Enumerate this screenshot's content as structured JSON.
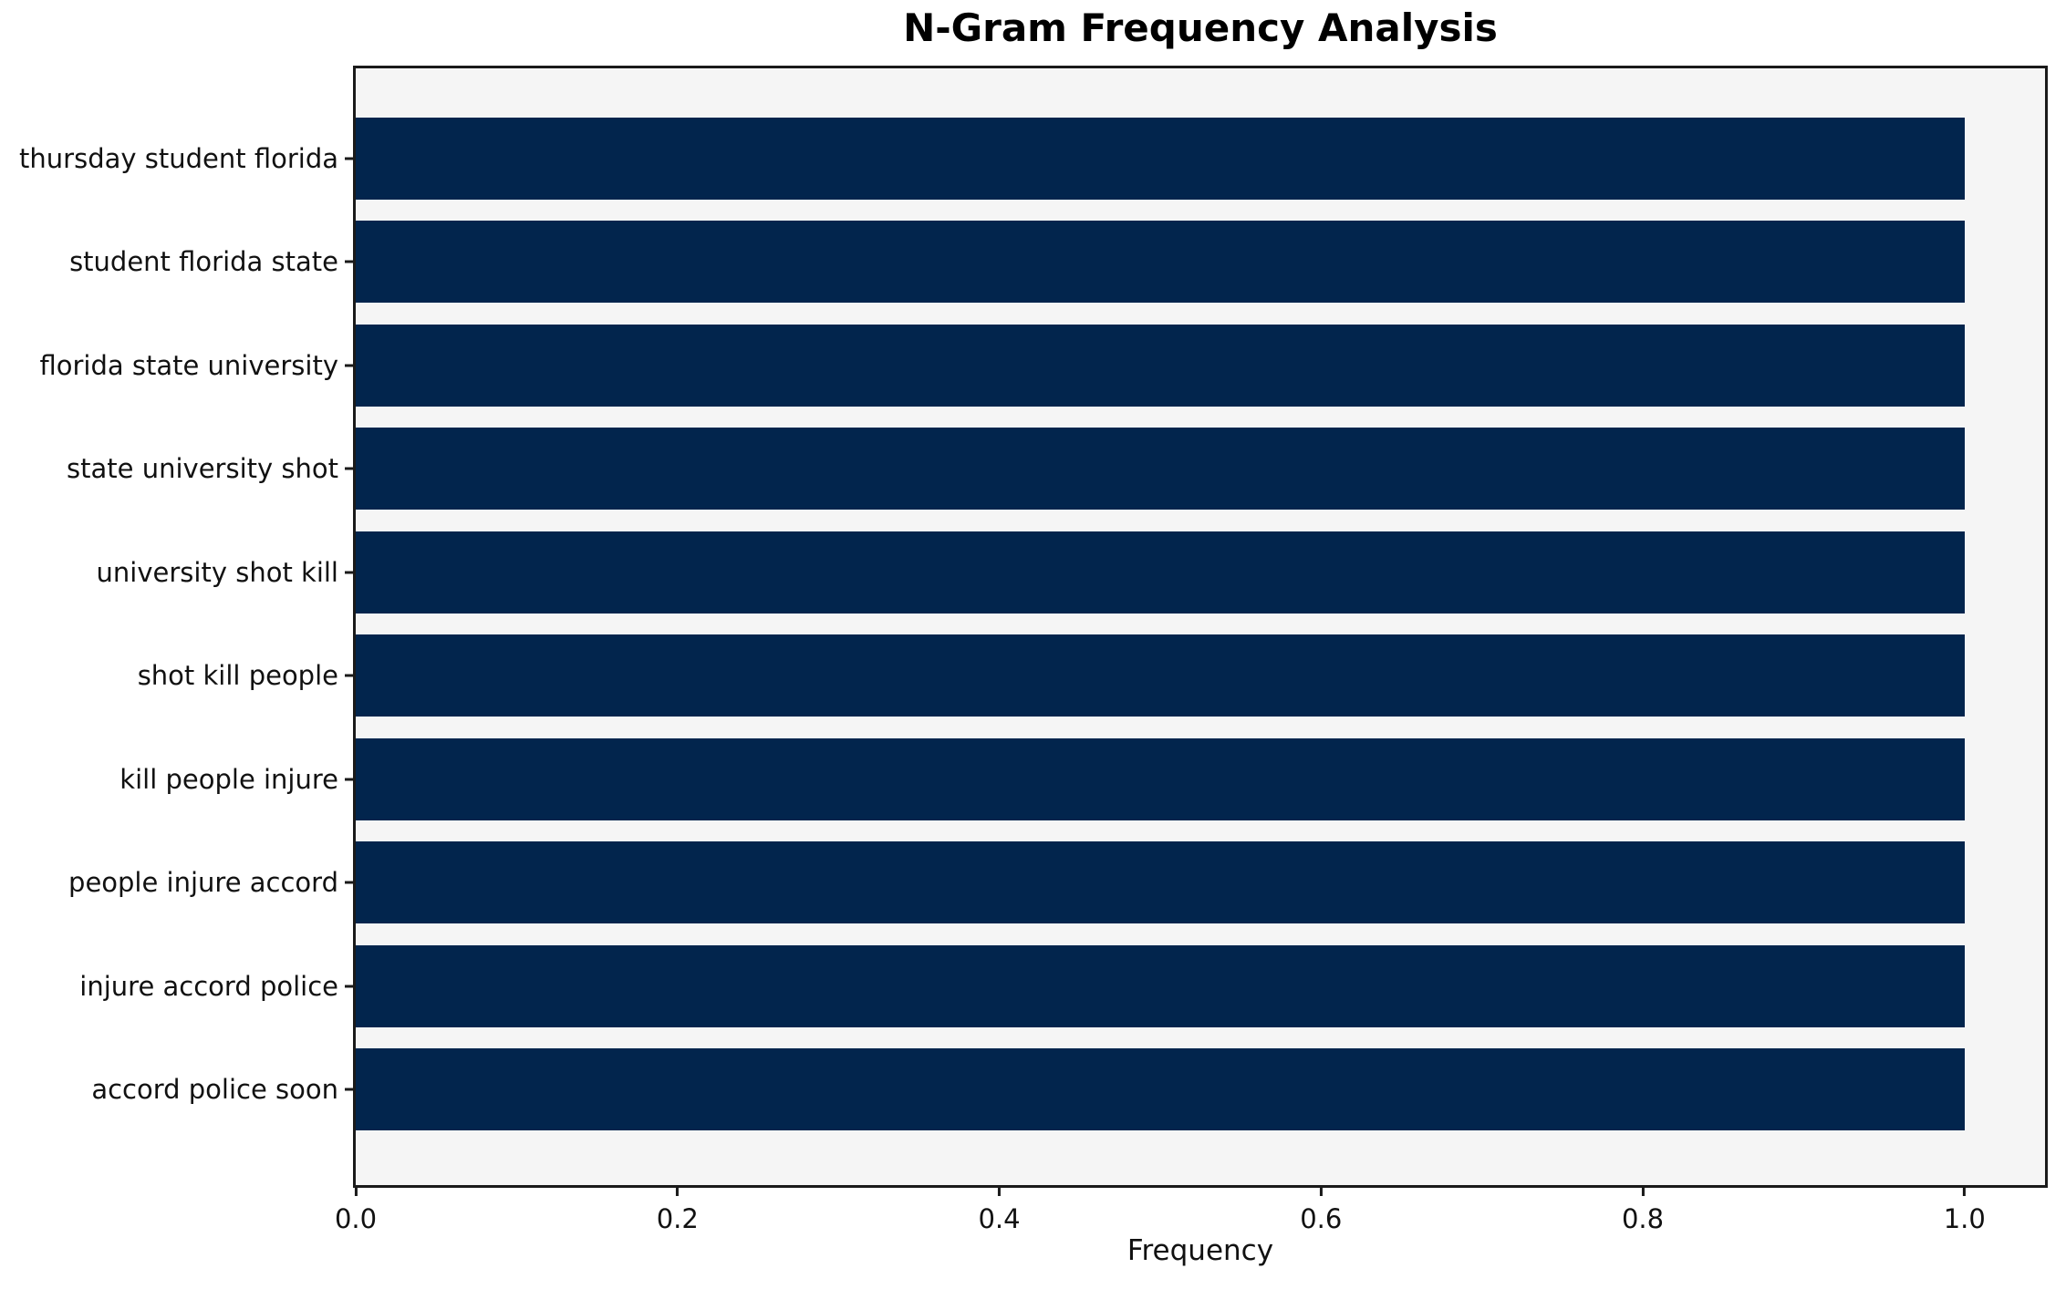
{
  "chart_data": {
    "type": "bar",
    "orientation": "horizontal",
    "title": "N-Gram Frequency Analysis",
    "xlabel": "Frequency",
    "ylabel": "",
    "categories": [
      "thursday student florida",
      "student florida state",
      "florida state university",
      "state university shot",
      "university shot kill",
      "shot kill people",
      "kill people injure",
      "people injure accord",
      "injure accord police",
      "accord police soon"
    ],
    "values": [
      1.0,
      1.0,
      1.0,
      1.0,
      1.0,
      1.0,
      1.0,
      1.0,
      1.0,
      1.0
    ],
    "xlim": [
      0,
      1.05
    ],
    "xticks": [
      0.0,
      0.2,
      0.4,
      0.6,
      0.8,
      1.0
    ],
    "xtick_labels": [
      "0.0",
      "0.2",
      "0.4",
      "0.6",
      "0.8",
      "1.0"
    ],
    "grid": false,
    "legend": null,
    "bar_color": "#02254d",
    "plot_background": "#f5f5f5",
    "spine_color": "#1a1a1a"
  }
}
